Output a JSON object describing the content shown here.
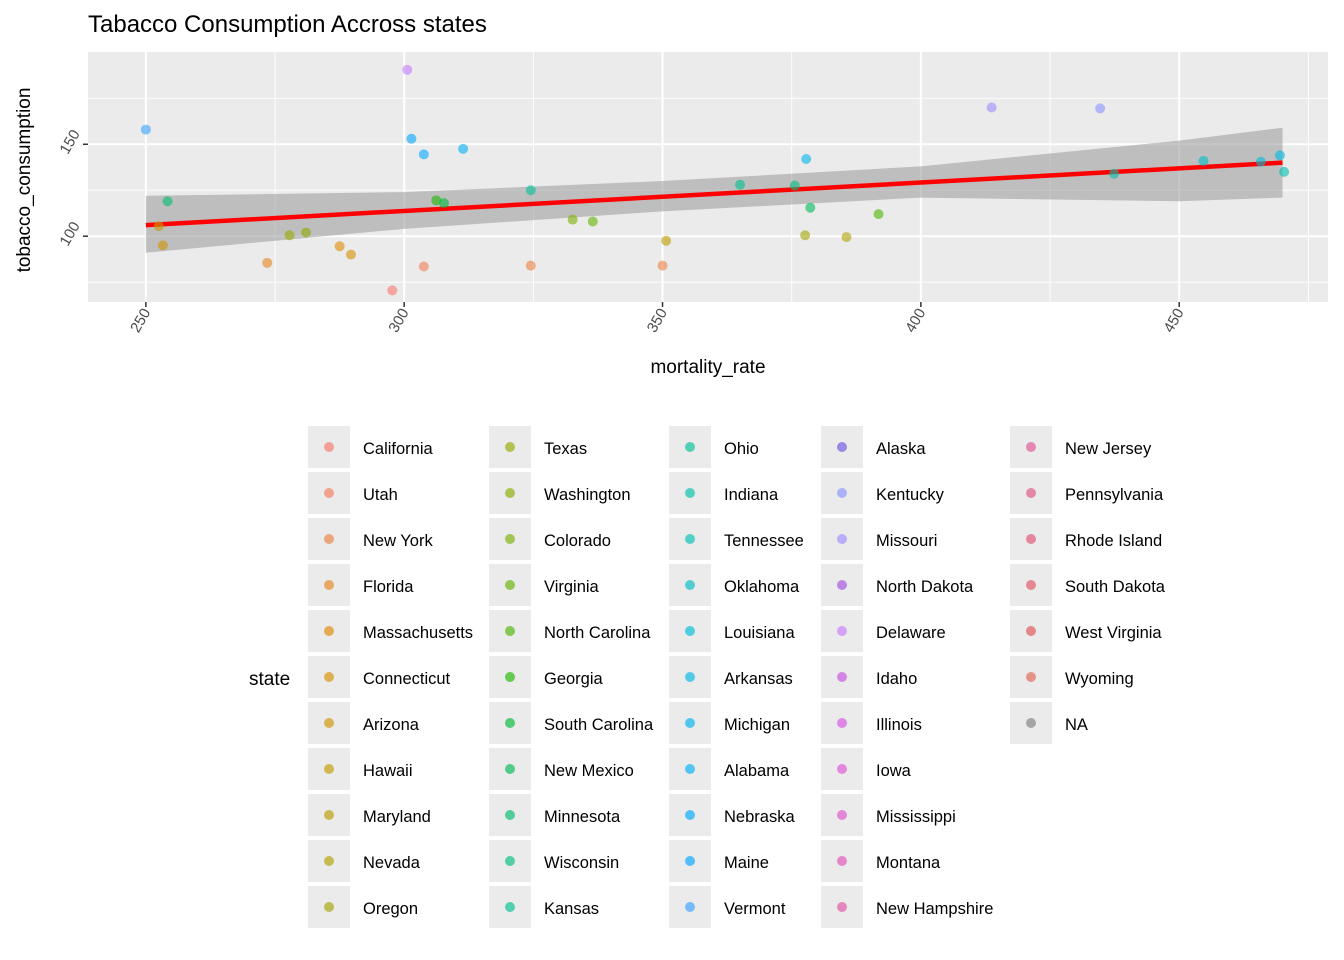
{
  "chart_data": {
    "type": "scatter",
    "title": "Tabacco Consumption Accross states",
    "xlabel": "mortality_rate",
    "ylabel": "tobacco_consumption",
    "xlim": [
      238.8,
      478.8
    ],
    "ylim": [
      64.2,
      200.2
    ],
    "x_ticks": [
      250,
      300,
      350,
      400,
      450
    ],
    "y_ticks": [
      100,
      150
    ],
    "grid": true,
    "legend": {
      "title": "state",
      "position": "right",
      "columns": [
        [
          "California",
          "Utah",
          "New York",
          "Florida",
          "Massachusetts",
          "Connecticut",
          "Arizona",
          "Hawaii",
          "Maryland",
          "Nevada",
          "Oregon"
        ],
        [
          "Texas",
          "Washington",
          "Colorado",
          "Virginia",
          "North Carolina",
          "Georgia",
          "South Carolina",
          "New Mexico",
          "Minnesota",
          "Wisconsin",
          "Kansas"
        ],
        [
          "Ohio",
          "Indiana",
          "Tennessee",
          "Oklahoma",
          "Louisiana",
          "Arkansas",
          "Michigan",
          "Alabama",
          "Nebraska",
          "Maine",
          "Vermont"
        ],
        [
          "Alaska",
          "Kentucky",
          "Missouri",
          "North Dakota",
          "Delaware",
          "Idaho",
          "Illinois",
          "Iowa",
          "Mississippi",
          "Montana",
          "New Hampshire"
        ],
        [
          "New Jersey",
          "Pennsylvania",
          "Rhode Island",
          "South Dakota",
          "West Virginia",
          "Wyoming",
          "NA"
        ]
      ]
    },
    "trend_line": {
      "color": "#ff0000",
      "x": [
        250,
        470
      ],
      "y": [
        106,
        140
      ]
    },
    "confidence_band": {
      "x": [
        250,
        300,
        350,
        400,
        450,
        470
      ],
      "lower": [
        91,
        104,
        113.5,
        121,
        119,
        121
      ],
      "upper": [
        122,
        124,
        130,
        138,
        152,
        159
      ]
    },
    "points": [
      {
        "state": "California",
        "color": "#f8766d",
        "x": 297.7,
        "y": 70.5
      },
      {
        "state": "Utah",
        "color": "#f37b59",
        "x": 303.8,
        "y": 83.5
      },
      {
        "state": "New York",
        "color": "#ed8141",
        "x": 324.5,
        "y": 84
      },
      {
        "state": "New York",
        "color": "#ed8141",
        "x": 350,
        "y": 84
      },
      {
        "state": "Florida",
        "color": "#e7861b",
        "x": 273.5,
        "y": 85.5
      },
      {
        "state": "Massachusetts",
        "color": "#e08b00",
        "x": 287.5,
        "y": 94.5
      },
      {
        "state": "Connecticut",
        "color": "#d89000",
        "x": 289.7,
        "y": 90
      },
      {
        "state": "Arizona",
        "color": "#cf9400",
        "x": 253.3,
        "y": 95
      },
      {
        "state": "Hawaii",
        "color": "#c59900",
        "x": 252.5,
        "y": 105.5
      },
      {
        "state": "Maryland",
        "color": "#bb9d00",
        "x": 350.7,
        "y": 97.5
      },
      {
        "state": "Nevada",
        "color": "#b0a100",
        "x": 385.6,
        "y": 99.5
      },
      {
        "state": "Oregon",
        "color": "#a3a500",
        "x": 377.6,
        "y": 100.5
      },
      {
        "state": "Texas",
        "color": "#97a900",
        "x": 277.8,
        "y": 100.5
      },
      {
        "state": "Washington",
        "color": "#89ac00",
        "x": 281,
        "y": 102
      },
      {
        "state": "Colorado",
        "color": "#78b000",
        "x": 332.6,
        "y": 109
      },
      {
        "state": "Virginia",
        "color": "#64b200",
        "x": 336.5,
        "y": 108
      },
      {
        "state": "North Carolina",
        "color": "#4bb500",
        "x": 391.8,
        "y": 112
      },
      {
        "state": "Georgia",
        "color": "#1eb800",
        "x": 306.2,
        "y": 119.5
      },
      {
        "state": "South Carolina",
        "color": "#00ba38",
        "x": 307.7,
        "y": 118
      },
      {
        "state": "New Mexico",
        "color": "#00bc56",
        "x": 378.6,
        "y": 115.5
      },
      {
        "state": "Minnesota",
        "color": "#00bd6b",
        "x": 254.2,
        "y": 119
      },
      {
        "state": "Wisconsin",
        "color": "#00be7d",
        "x": 375.6,
        "y": 127.5
      },
      {
        "state": "Kansas",
        "color": "#00c08d",
        "x": 365,
        "y": 128
      },
      {
        "state": "Ohio",
        "color": "#00c19a",
        "x": 324.5,
        "y": 125
      },
      {
        "state": "Indiana",
        "color": "#00c1a7",
        "x": 437.4,
        "y": 134
      },
      {
        "state": "Tennessee",
        "color": "#00c0b3",
        "x": 470.3,
        "y": 135
      },
      {
        "state": "Oklahoma",
        "color": "#00bfc4",
        "x": 454.7,
        "y": 141
      },
      {
        "state": "Louisiana",
        "color": "#00bcd8",
        "x": 465.8,
        "y": 140.5
      },
      {
        "state": "Arkansas",
        "color": "#00b9e3",
        "x": 469.5,
        "y": 144
      },
      {
        "state": "Michigan",
        "color": "#00b4ef",
        "x": 377.8,
        "y": 142
      },
      {
        "state": "Alabama",
        "color": "#00b0f6",
        "x": 311.4,
        "y": 147.5
      },
      {
        "state": "Nebraska",
        "color": "#00a9ff",
        "x": 303.8,
        "y": 144.5
      },
      {
        "state": "Maine",
        "color": "#00a5ff",
        "x": 301.4,
        "y": 153
      },
      {
        "state": "Vermont",
        "color": "#35a2ff",
        "x": 250,
        "y": 158
      },
      {
        "state": "Kentucky",
        "color": "#8a93ff",
        "x": 434.7,
        "y": 169.5
      },
      {
        "state": "Missouri",
        "color": "#9e8cff",
        "x": 413.7,
        "y": 170
      },
      {
        "state": "Delaware",
        "color": "#c77cff",
        "x": 300.6,
        "y": 190.5
      }
    ]
  }
}
